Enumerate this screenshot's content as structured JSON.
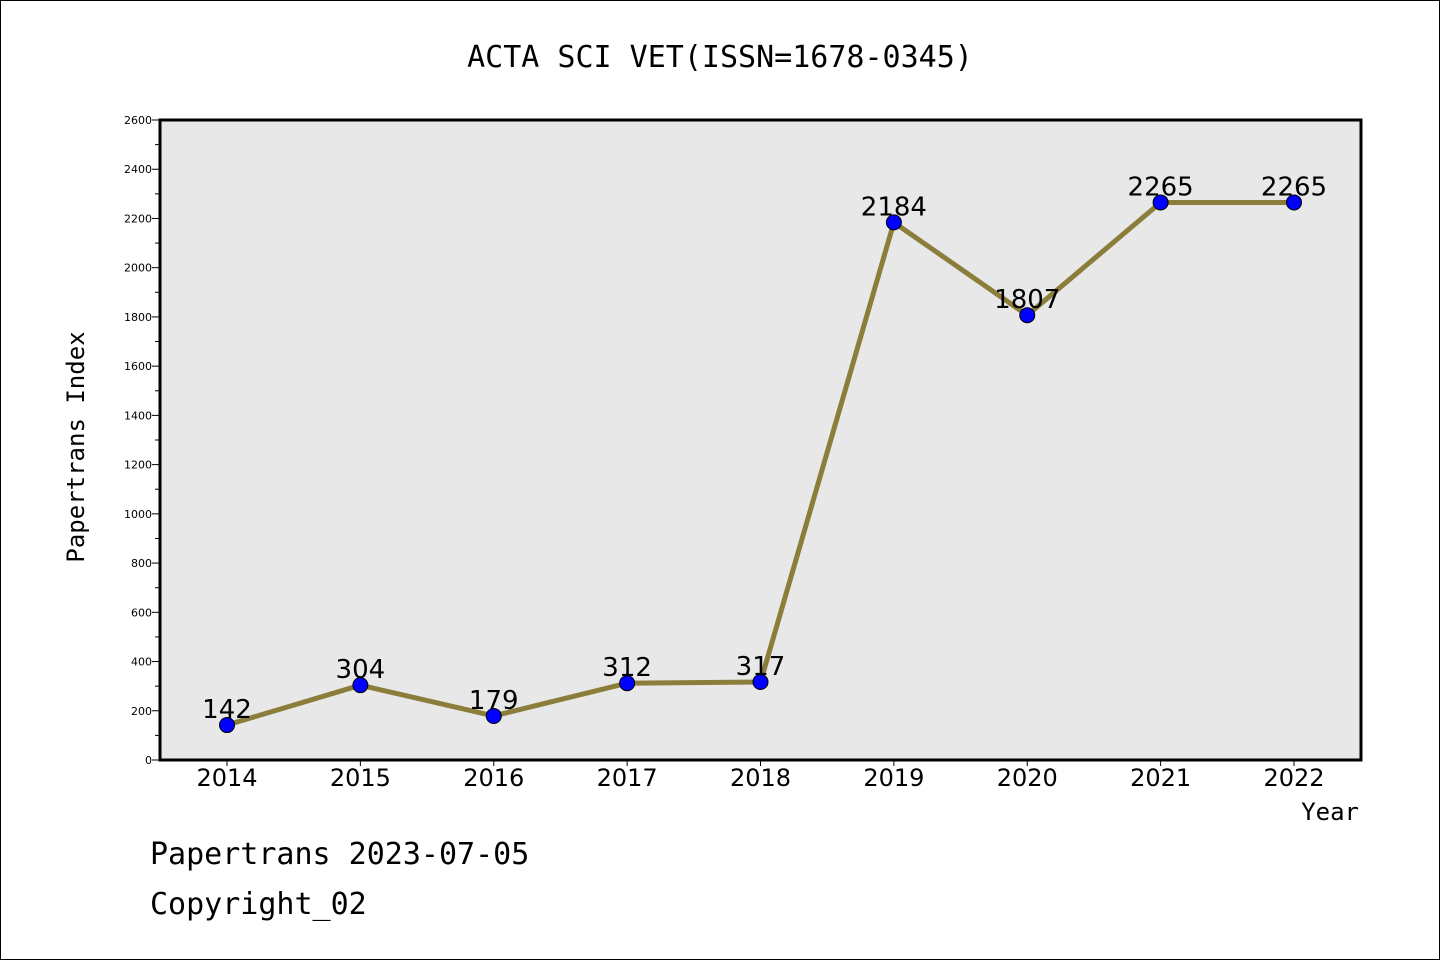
{
  "chart_data": {
    "type": "line",
    "title": "ACTA SCI VET(ISSN=1678-0345)",
    "xlabel": "Year",
    "ylabel": "Papertrans Index",
    "categories": [
      "2014",
      "2015",
      "2016",
      "2017",
      "2018",
      "2019",
      "2020",
      "2021",
      "2022"
    ],
    "values": [
      142,
      304,
      179,
      312,
      317,
      2184,
      1807,
      2265,
      2265
    ],
    "data_labels": [
      "142",
      "304",
      "179",
      "312",
      "317",
      "2184",
      "1807",
      "2265",
      "2265"
    ],
    "ylim": [
      0,
      2600
    ],
    "yticks": [
      "0",
      "200",
      "400",
      "600",
      "800",
      "1000",
      "1200",
      "1400",
      "1600",
      "1800",
      "2000",
      "2200",
      "2400",
      "2600"
    ],
    "grid": false,
    "line_color": "#8b7d3a",
    "marker_color": "#0000ff",
    "plot_background": "#e8e8e8"
  },
  "footer": {
    "source": "Papertrans 2023-07-05",
    "copyright": "Copyright_02"
  }
}
